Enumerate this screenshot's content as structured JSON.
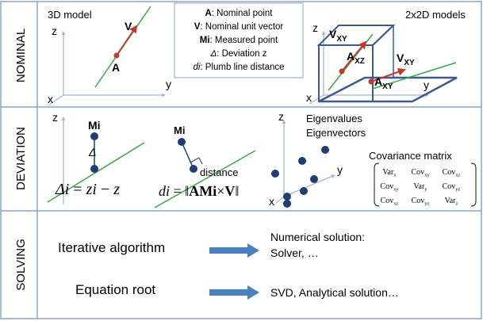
{
  "rows": [
    {
      "label": "NOMINAL"
    },
    {
      "label": "DEVIATION"
    },
    {
      "label": "SOLVING"
    }
  ],
  "axes": {
    "x": "x",
    "y": "y",
    "z": "z"
  },
  "nominal": {
    "model3d_title": "3D model",
    "model2x2_title": "2x2D models",
    "point_A": "A",
    "vector_V": "V",
    "legend": [
      {
        "key": "A",
        "text": ": Nominal point"
      },
      {
        "key": "V",
        "text": ": Nominal unit vector"
      },
      {
        "key": "Mi",
        "text": ": Measured point"
      },
      {
        "key": "Δ",
        "text": ": Deviation z"
      },
      {
        "key": "di",
        "text": ": Plumb line distance"
      }
    ],
    "v_xy_upper": "V",
    "v_xy_upper_sub": "XY",
    "v_xy_right": "V",
    "v_xy_right_sub": "XY",
    "a_xz": "A",
    "a_xz_sub": "XZ",
    "a_xy": "A",
    "a_xy_sub": "XY"
  },
  "deviation": {
    "mi_label_1": "Mi",
    "delta_label": "Δ",
    "formula_1": {
      "lhs": "Δi",
      "eq": "=",
      "a": "zi",
      "minus": "−",
      "b": "z"
    },
    "mi_label_2": "Mi",
    "distance_label": "distance",
    "formula_2": {
      "lhs": "di",
      "eq": "=",
      "open": "‖",
      "body": "AMi",
      "times": "×",
      "v": "V",
      "close": "‖"
    },
    "eigen_1": "Eigenvalues",
    "eigen_2": "Eigenvectors",
    "cov_title": "Covariance matrix",
    "cov": [
      [
        {
          "t": "Var",
          "s": "x"
        },
        {
          "t": "Cov",
          "s": "xy"
        },
        {
          "t": "Cov",
          "s": "xz"
        }
      ],
      [
        {
          "t": "Cov",
          "s": "xy"
        },
        {
          "t": "Var",
          "s": "y"
        },
        {
          "t": "Cov",
          "s": "yz"
        }
      ],
      [
        {
          "t": "Cov",
          "s": "xz"
        },
        {
          "t": "Cov",
          "s": "yz"
        },
        {
          "t": "Var",
          "s": "z"
        }
      ]
    ]
  },
  "solving": {
    "method_1": "Iterative algorithm",
    "result_1a": "Numerical solution:",
    "result_1b": "Solver, …",
    "method_2": "Equation root",
    "result_2": "SVD, Analytical solution…"
  },
  "colors": {
    "border": "#8ea3bf",
    "axis": "#a9b8cc",
    "line_green": "#3aa64a",
    "vector_red": "#c0392b",
    "point_blue": "#1f3c73",
    "plane_stroke": "#3c5a8e",
    "arrow_blue": "#4a7fc0"
  }
}
